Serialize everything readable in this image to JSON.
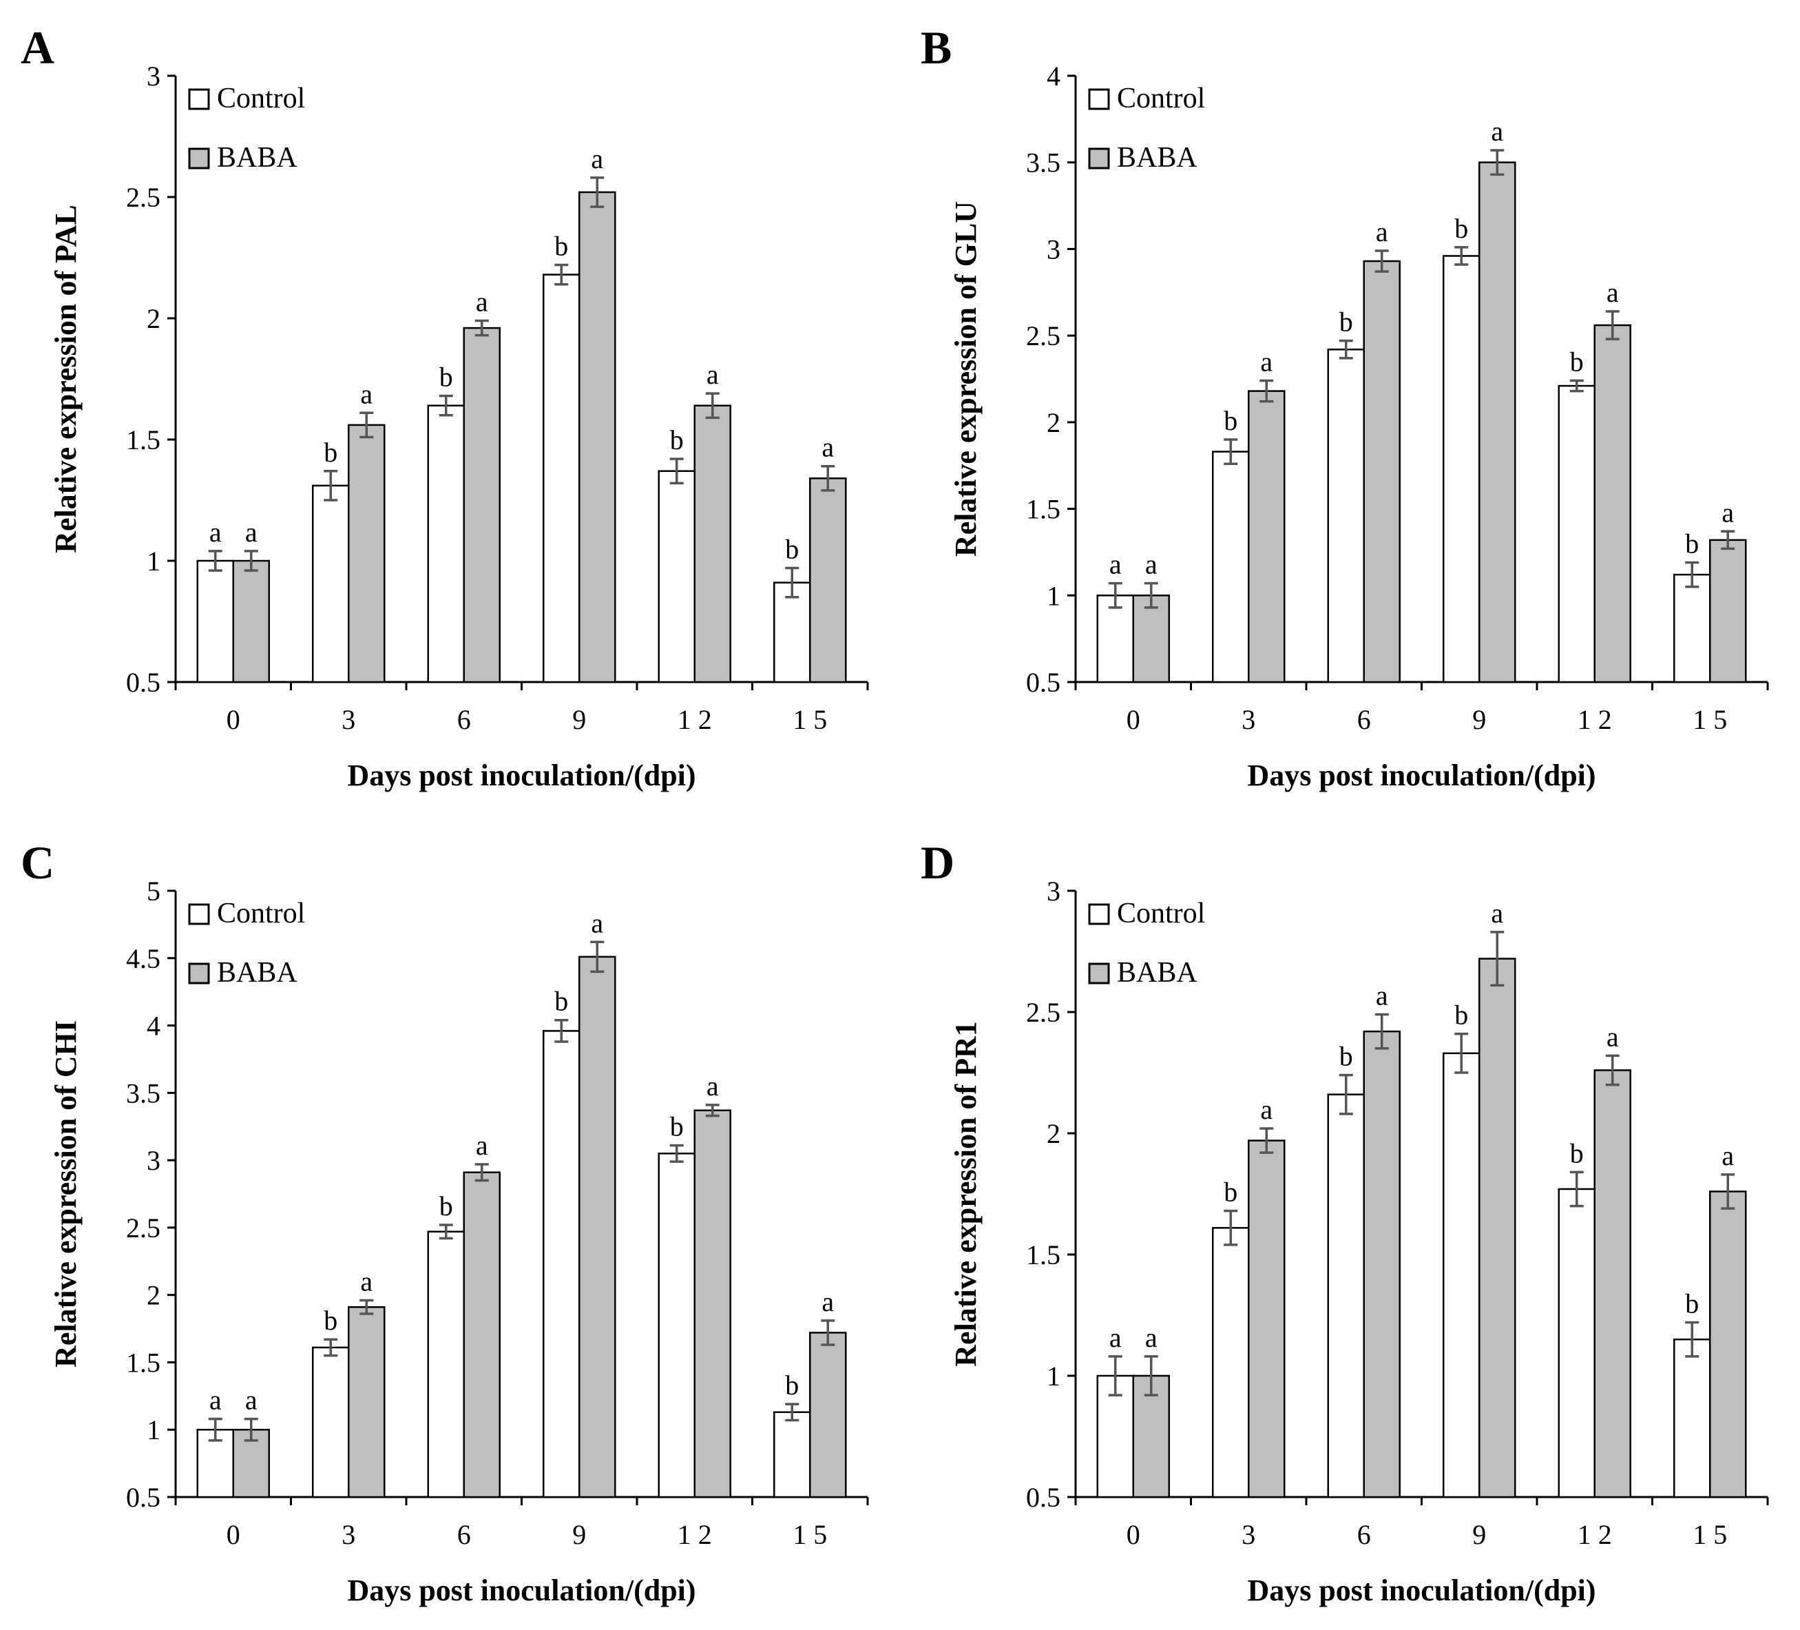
{
  "chart_data": [
    {
      "panel": "A",
      "type": "bar",
      "xlabel": "Days post inoculation/(dpi)",
      "ylabel": "Relative expression of  PAL",
      "ylim": [
        0.5,
        3
      ],
      "yticks": [
        "0.5",
        "1",
        "1.5",
        "2",
        "2.5",
        "3"
      ],
      "categories": [
        "0",
        "3",
        "6",
        "9",
        "1 2",
        "1 5"
      ],
      "series": [
        {
          "name": "Control",
          "values": [
            1.0,
            1.31,
            1.64,
            2.18,
            1.37,
            0.91
          ],
          "errors": [
            0.04,
            0.06,
            0.04,
            0.04,
            0.05,
            0.06
          ],
          "letters": [
            "a",
            "b",
            "b",
            "b",
            "b",
            "b"
          ]
        },
        {
          "name": "BABA",
          "values": [
            1.0,
            1.56,
            1.96,
            2.52,
            1.64,
            1.34
          ],
          "errors": [
            0.04,
            0.05,
            0.03,
            0.06,
            0.05,
            0.05
          ],
          "letters": [
            "a",
            "a",
            "a",
            "a",
            "a",
            "a"
          ]
        }
      ],
      "legend": "top-left"
    },
    {
      "panel": "B",
      "type": "bar",
      "xlabel": "Days post inoculation/(dpi)",
      "ylabel": "Relative expression of  GLU",
      "ylim": [
        0.5,
        4
      ],
      "yticks": [
        "0.5",
        "1",
        "1.5",
        "2",
        "2.5",
        "3",
        "3.5",
        "4"
      ],
      "categories": [
        "0",
        "3",
        "6",
        "9",
        "1 2",
        "1 5"
      ],
      "series": [
        {
          "name": "Control",
          "values": [
            1.0,
            1.83,
            2.42,
            2.96,
            2.21,
            1.12
          ],
          "errors": [
            0.07,
            0.07,
            0.05,
            0.05,
            0.03,
            0.07
          ],
          "letters": [
            "a",
            "b",
            "b",
            "b",
            "b",
            "b"
          ]
        },
        {
          "name": "BABA",
          "values": [
            1.0,
            2.18,
            2.93,
            3.5,
            2.56,
            1.32
          ],
          "errors": [
            0.07,
            0.06,
            0.06,
            0.07,
            0.08,
            0.05
          ],
          "letters": [
            "a",
            "a",
            "a",
            "a",
            "a",
            "a"
          ]
        }
      ],
      "legend": "top-left"
    },
    {
      "panel": "C",
      "type": "bar",
      "xlabel": "Days post inoculation/(dpi)",
      "ylabel": "Relative expression of CHI",
      "ylim": [
        0.5,
        5
      ],
      "yticks": [
        "0.5",
        "1",
        "1.5",
        "2",
        "2.5",
        "3",
        "3.5",
        "4",
        "4.5",
        "5"
      ],
      "categories": [
        "0",
        "3",
        "6",
        "9",
        "1 2",
        "1 5"
      ],
      "series": [
        {
          "name": "Control",
          "values": [
            1.0,
            1.61,
            2.47,
            3.96,
            3.05,
            1.13
          ],
          "errors": [
            0.08,
            0.06,
            0.05,
            0.08,
            0.06,
            0.06
          ],
          "letters": [
            "a",
            "b",
            "b",
            "b",
            "b",
            "b"
          ]
        },
        {
          "name": "BABA",
          "values": [
            1.0,
            1.91,
            2.91,
            4.51,
            3.37,
            1.72
          ],
          "errors": [
            0.08,
            0.05,
            0.06,
            0.11,
            0.04,
            0.09
          ],
          "letters": [
            "a",
            "a",
            "a",
            "a",
            "a",
            "a"
          ]
        }
      ],
      "legend": "top-left"
    },
    {
      "panel": "D",
      "type": "bar",
      "xlabel": "Days post inoculation/(dpi)",
      "ylabel": "Relative expression of PR1",
      "ylim": [
        0.5,
        3
      ],
      "yticks": [
        "0.5",
        "1",
        "1.5",
        "2",
        "2.5",
        "3"
      ],
      "categories": [
        "0",
        "3",
        "6",
        "9",
        "1 2",
        "1 5"
      ],
      "series": [
        {
          "name": "Control",
          "values": [
            1.0,
            1.61,
            2.16,
            2.33,
            1.77,
            1.15
          ],
          "errors": [
            0.08,
            0.07,
            0.08,
            0.08,
            0.07,
            0.07
          ],
          "letters": [
            "a",
            "b",
            "b",
            "b",
            "b",
            "b"
          ]
        },
        {
          "name": "BABA",
          "values": [
            1.0,
            1.97,
            2.42,
            2.72,
            2.26,
            1.76
          ],
          "errors": [
            0.08,
            0.05,
            0.07,
            0.11,
            0.06,
            0.07
          ],
          "letters": [
            "a",
            "a",
            "a",
            "a",
            "a",
            "a"
          ]
        }
      ],
      "legend": "top-left"
    }
  ],
  "colors": {
    "control": "#ffffff",
    "baba": "#bfbfbf",
    "axis": "#000000",
    "error": "#555555"
  }
}
